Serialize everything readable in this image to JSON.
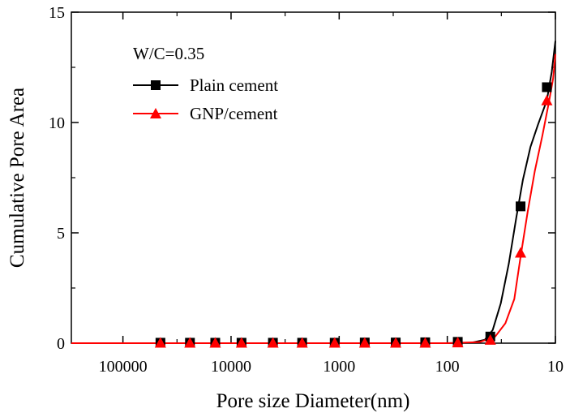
{
  "chart_data": {
    "type": "line",
    "xlabel": "Pore size Diameter(nm)",
    "ylabel": "Cumulative Pore Area",
    "x_scale": "log",
    "x_reversed": true,
    "xlim": [
      300000,
      10
    ],
    "ylim": [
      0,
      15
    ],
    "x_ticks": [
      100000,
      10000,
      1000,
      100,
      10
    ],
    "x_tick_labels": [
      "100000",
      "10000",
      "1000",
      "100",
      "10"
    ],
    "y_ticks": [
      0,
      5,
      10,
      15
    ],
    "y_tick_labels": [
      "0",
      "5",
      "10",
      "15"
    ],
    "annotation": "W/C=0.35",
    "legend_position": "top-left",
    "grid": false,
    "series": [
      {
        "name": "Plain cement",
        "color": "#000000",
        "marker": "square",
        "points": [
          [
            45000,
            0.02
          ],
          [
            24000,
            0.02
          ],
          [
            14000,
            0.02
          ],
          [
            8000,
            0.02
          ],
          [
            4100,
            0.02
          ],
          [
            2200,
            0.02
          ],
          [
            1100,
            0.02
          ],
          [
            580,
            0.03
          ],
          [
            300,
            0.03
          ],
          [
            160,
            0.04
          ],
          [
            80,
            0.06
          ],
          [
            40,
            0.3
          ],
          [
            21,
            6.2
          ],
          [
            12,
            11.6
          ]
        ],
        "curve": [
          [
            300000,
            0
          ],
          [
            100,
            0
          ],
          [
            60,
            0.02
          ],
          [
            45,
            0.15
          ],
          [
            38,
            0.6
          ],
          [
            32,
            1.8
          ],
          [
            27,
            3.6
          ],
          [
            23,
            5.7
          ],
          [
            20,
            7.4
          ],
          [
            17,
            8.9
          ],
          [
            14.5,
            9.9
          ],
          [
            12,
            11.0
          ],
          [
            10.8,
            12.3
          ],
          [
            10,
            13.7
          ]
        ]
      },
      {
        "name": "GNP/cement",
        "color": "#ff0000",
        "marker": "triangle",
        "points": [
          [
            45000,
            0.02
          ],
          [
            24000,
            0.02
          ],
          [
            14000,
            0.02
          ],
          [
            8000,
            0.02
          ],
          [
            4100,
            0.02
          ],
          [
            2200,
            0.02
          ],
          [
            1100,
            0.02
          ],
          [
            580,
            0.02
          ],
          [
            300,
            0.02
          ],
          [
            160,
            0.02
          ],
          [
            80,
            0.03
          ],
          [
            40,
            0.15
          ],
          [
            21,
            4.1
          ],
          [
            12,
            11.0
          ]
        ],
        "curve": [
          [
            300000,
            0
          ],
          [
            100,
            0
          ],
          [
            50,
            0.05
          ],
          [
            36,
            0.3
          ],
          [
            29,
            0.9
          ],
          [
            24,
            2.0
          ],
          [
            21,
            3.9
          ],
          [
            18,
            6.0
          ],
          [
            15.5,
            7.8
          ],
          [
            13.2,
            9.4
          ],
          [
            11.5,
            10.9
          ],
          [
            10.5,
            12.0
          ],
          [
            10,
            13.1
          ]
        ]
      }
    ]
  }
}
